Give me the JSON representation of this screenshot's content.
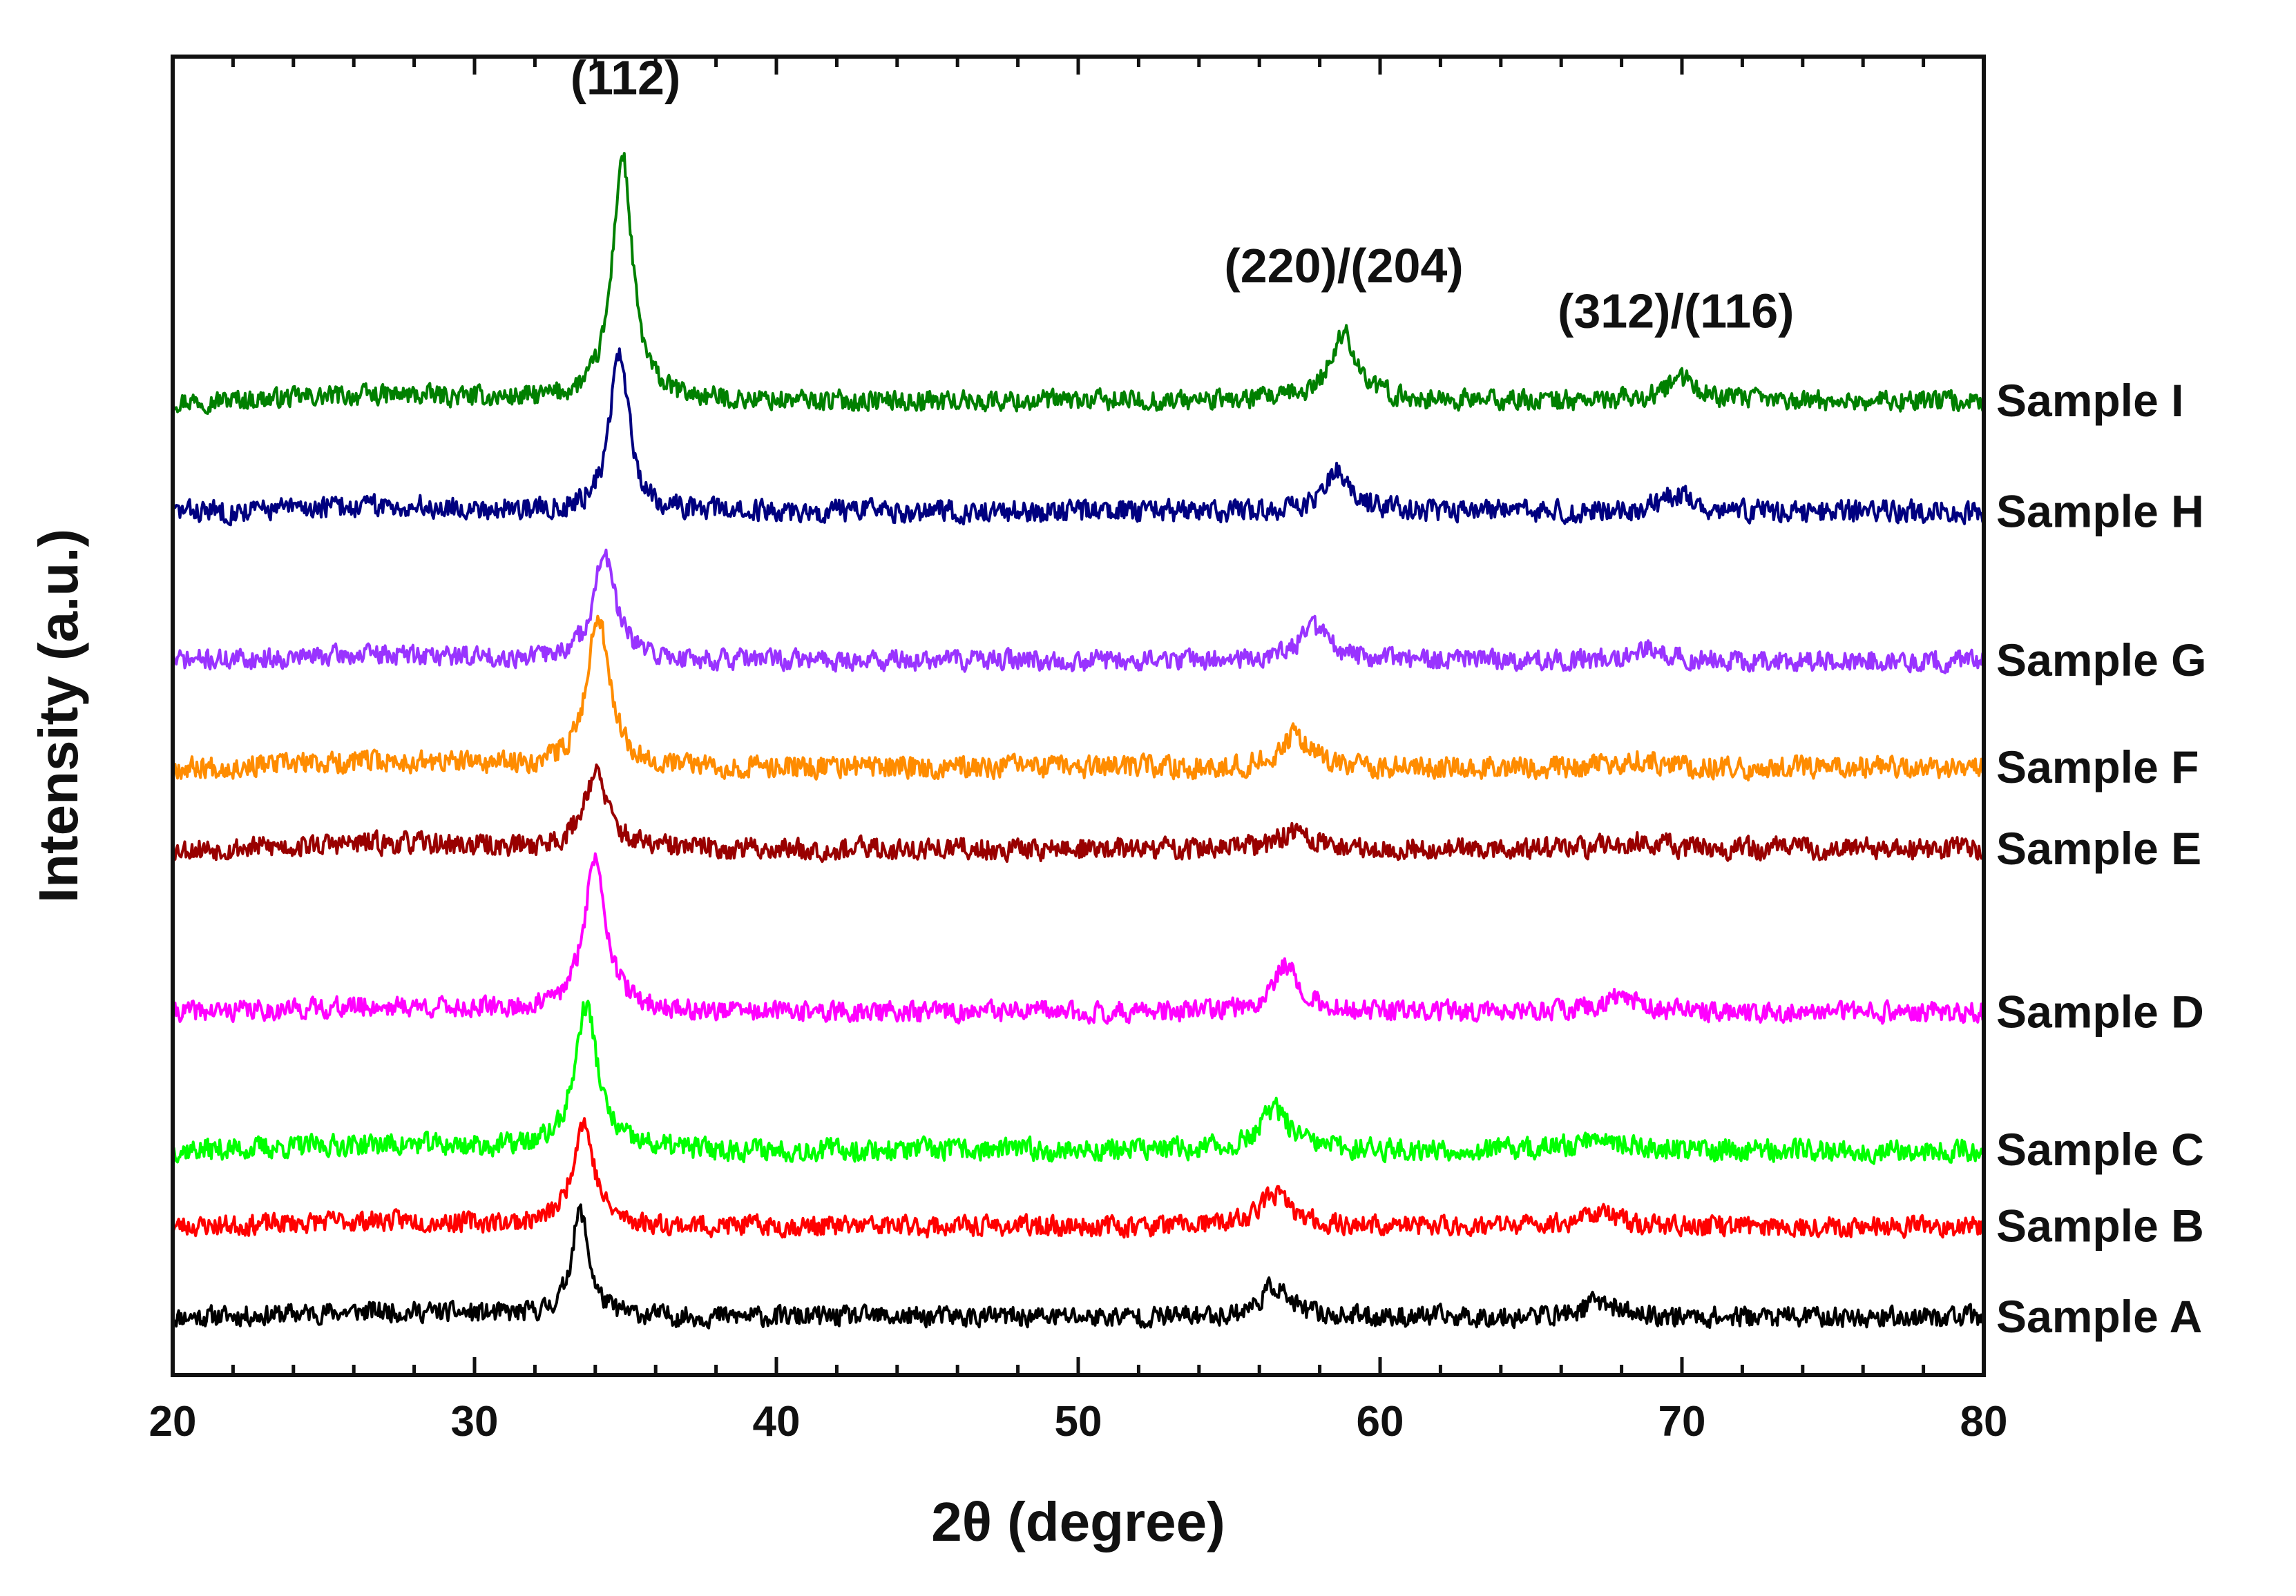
{
  "chart_data": {
    "type": "line",
    "xlabel": "2θ (degree)",
    "ylabel": "Intensity (a.u.)",
    "xlim": [
      20,
      80
    ],
    "y_axis_ticks": false,
    "xticks": [
      20,
      30,
      40,
      50,
      60,
      70,
      80
    ],
    "xtick_labels": [
      "20",
      "30",
      "40",
      "50",
      "60",
      "70",
      "80"
    ],
    "minor_tick_step": 2,
    "legend": "series labels placed right of each curve",
    "annotations": [
      {
        "text": "(112)",
        "x": 35.0
      },
      {
        "text": "(220)/(204)",
        "x": 58.8
      },
      {
        "text": "(312)/(116)",
        "x": 69.8
      }
    ],
    "series": [
      {
        "name": "Sample A",
        "color": "#000000",
        "baseline": 0.0,
        "noise": 0.055,
        "seed": 11,
        "peaks": [
          {
            "center": 33.5,
            "height": 0.58,
            "width": 0.35
          },
          {
            "center": 56.5,
            "height": 0.17,
            "width": 0.55
          },
          {
            "center": 67.3,
            "height": 0.09,
            "width": 0.6
          }
        ]
      },
      {
        "name": "Sample B",
        "color": "#ff0000",
        "baseline": 0.5,
        "noise": 0.055,
        "seed": 23,
        "peaks": [
          {
            "center": 33.6,
            "height": 0.58,
            "width": 0.42
          },
          {
            "center": 56.5,
            "height": 0.18,
            "width": 0.6
          },
          {
            "center": 67.2,
            "height": 0.08,
            "width": 0.7
          }
        ]
      },
      {
        "name": "Sample C",
        "color": "#00ff00",
        "baseline": 0.92,
        "noise": 0.06,
        "seed": 37,
        "peaks": [
          {
            "center": 33.7,
            "height": 0.8,
            "width": 0.45
          },
          {
            "center": 56.5,
            "height": 0.22,
            "width": 0.6
          },
          {
            "center": 67.3,
            "height": 0.08,
            "width": 0.7
          }
        ]
      },
      {
        "name": "Sample D",
        "color": "#ff00ff",
        "baseline": 1.68,
        "noise": 0.055,
        "seed": 41,
        "peaks": [
          {
            "center": 34.0,
            "height": 0.85,
            "width": 0.45
          },
          {
            "center": 56.9,
            "height": 0.26,
            "width": 0.55
          },
          {
            "center": 68.0,
            "height": 0.1,
            "width": 0.65
          }
        ]
      },
      {
        "name": "Sample E",
        "color": "#990000",
        "baseline": 2.58,
        "noise": 0.06,
        "seed": 53,
        "peaks": [
          {
            "center": 34.0,
            "height": 0.42,
            "width": 0.48
          },
          {
            "center": 57.2,
            "height": 0.1,
            "width": 0.6
          },
          {
            "center": 68.5,
            "height": 0.05,
            "width": 0.7
          }
        ]
      },
      {
        "name": "Sample F",
        "color": "#ff8c00",
        "baseline": 3.03,
        "noise": 0.06,
        "seed": 67,
        "peaks": [
          {
            "center": 34.1,
            "height": 0.85,
            "width": 0.45
          },
          {
            "center": 57.2,
            "height": 0.18,
            "width": 0.6
          },
          {
            "center": 68.6,
            "height": 0.05,
            "width": 0.7
          }
        ]
      },
      {
        "name": "Sample G",
        "color": "#9933ff",
        "baseline": 3.62,
        "noise": 0.055,
        "seed": 71,
        "peaks": [
          {
            "center": 34.3,
            "height": 0.58,
            "width": 0.45
          },
          {
            "center": 57.8,
            "height": 0.18,
            "width": 0.6
          },
          {
            "center": 68.8,
            "height": 0.06,
            "width": 0.7
          }
        ]
      },
      {
        "name": "Sample H",
        "color": "#000080",
        "baseline": 4.44,
        "noise": 0.06,
        "seed": 83,
        "peaks": [
          {
            "center": 34.8,
            "height": 0.88,
            "width": 0.38
          },
          {
            "center": 58.6,
            "height": 0.22,
            "width": 0.55
          },
          {
            "center": 69.9,
            "height": 0.1,
            "width": 0.65
          }
        ]
      },
      {
        "name": "Sample I",
        "color": "#008000",
        "baseline": 5.05,
        "noise": 0.055,
        "seed": 97,
        "peaks": [
          {
            "center": 34.9,
            "height": 1.35,
            "width": 0.4
          },
          {
            "center": 58.8,
            "height": 0.37,
            "width": 0.55
          },
          {
            "center": 70.0,
            "height": 0.12,
            "width": 0.65
          }
        ]
      }
    ],
    "ylim": [
      -0.32,
      6.95
    ]
  }
}
